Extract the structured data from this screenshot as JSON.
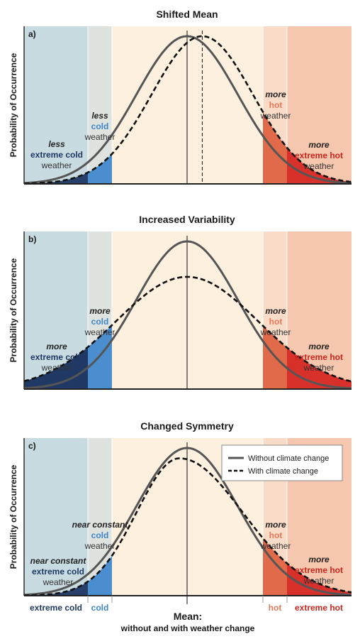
{
  "colors": {
    "extreme_cold_zone": "#c8dbe1",
    "cold_zone": "#dfe3e0",
    "middle_zone": "#fdf0df",
    "hot_zone": "#f9dcc8",
    "extreme_hot_zone": "#f4c7ae",
    "extreme_cold_text": "#1f3864",
    "cold_text": "#3e86c8",
    "hot_text": "#e4785a",
    "extreme_hot_text": "#c8261d",
    "tail_extreme_cold": "#1f3864",
    "tail_cold": "#4a8ed0",
    "tail_hot": "#e06a49",
    "tail_extreme_hot": "#d8302a",
    "curve_without": "#555555",
    "curve_with": "#111111"
  },
  "y_axis_label": "Probability of Occurrence",
  "legend": {
    "without_label": "Without climate change",
    "with_label": "With climate change"
  },
  "bottom_axis": {
    "extreme_cold": "extreme cold",
    "cold": "cold",
    "hot": "hot",
    "extreme_hot": "extreme hot",
    "mean_line1": "Mean:",
    "mean_line2": "without and with weather change"
  },
  "chart_data": [
    {
      "type": "area",
      "panel_label": "a)",
      "title": "Shifted Mean",
      "annotations": {
        "ext_cold": [
          "less",
          "extreme cold",
          "weather"
        ],
        "cold": [
          "less",
          "cold",
          "weather"
        ],
        "hot": [
          "more",
          "hot",
          "weather"
        ],
        "ext_hot": [
          "more",
          "extreme hot",
          "weather"
        ]
      },
      "series": [
        {
          "name": "Without climate change",
          "style": "solid",
          "mean": 0,
          "sd": 1,
          "peak": 1.0
        },
        {
          "name": "With climate change",
          "style": "dashed",
          "mean": 0.3,
          "sd": 1,
          "peak": 1.0
        }
      ]
    },
    {
      "type": "area",
      "panel_label": "b)",
      "title": "Increased Variability",
      "annotations": {
        "ext_cold": [
          "more",
          "extreme cold",
          "weather"
        ],
        "cold": [
          "more",
          "cold",
          "weather"
        ],
        "hot": [
          "more",
          "hot",
          "weather"
        ],
        "ext_hot": [
          "more",
          "extreme hot",
          "weather"
        ]
      },
      "series": [
        {
          "name": "Without climate change",
          "style": "solid",
          "mean": 0,
          "sd": 1,
          "peak": 1.0
        },
        {
          "name": "With climate change",
          "style": "dashed",
          "mean": 0,
          "sd": 1.4,
          "peak": 0.76
        }
      ]
    },
    {
      "type": "area",
      "panel_label": "c)",
      "title": "Changed Symmetry",
      "annotations": {
        "ext_cold": [
          "near constant",
          "extreme cold",
          "weather"
        ],
        "cold": [
          "near constant",
          "cold",
          "weather"
        ],
        "hot": [
          "more",
          "hot",
          "weather"
        ],
        "ext_hot": [
          "more",
          "extreme hot",
          "weather"
        ]
      },
      "series": [
        {
          "name": "Without climate change",
          "style": "solid",
          "mean": 0,
          "sd": 1,
          "peak": 1.0
        },
        {
          "name": "With climate change",
          "style": "dashed",
          "mode": -0.15,
          "sd_left": 0.85,
          "sd_right": 1.25,
          "peak": 0.93
        }
      ]
    }
  ]
}
